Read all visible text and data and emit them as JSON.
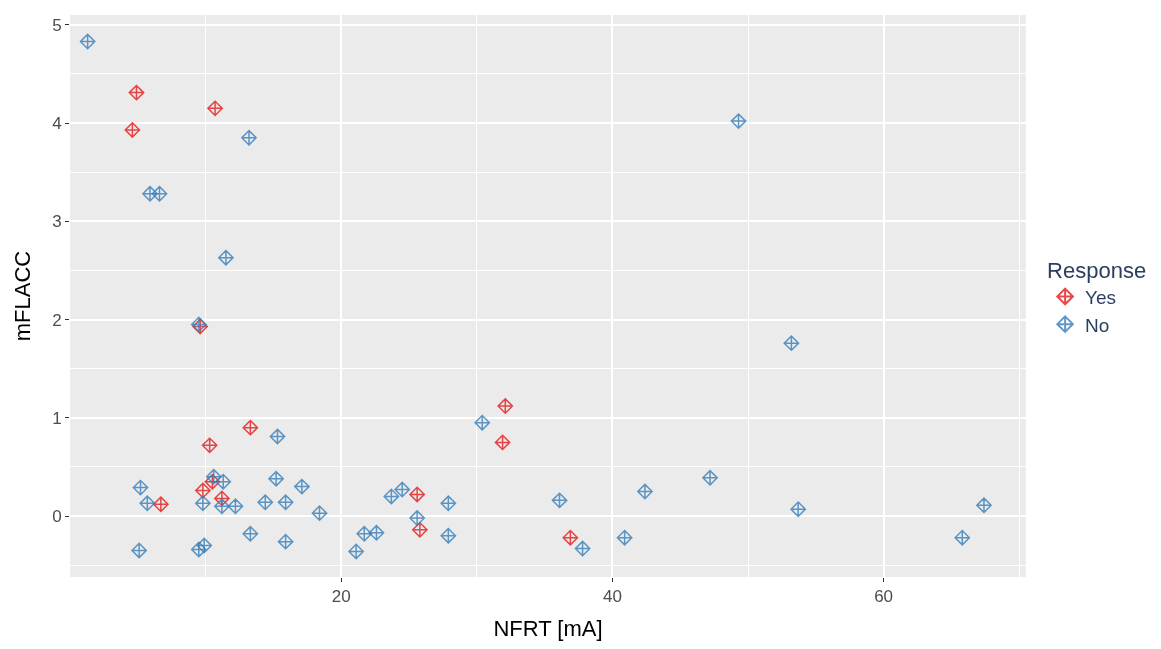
{
  "chart_data": {
    "type": "scatter",
    "xlabel": "NFRT [mA]",
    "ylabel": "mFLACC",
    "legend_title": "Response",
    "legend": "right",
    "grid": true,
    "marker": "diamond",
    "xlim": [
      0,
      70.5
    ],
    "xticks": [
      20,
      40,
      60
    ],
    "ylim": [
      -0.62,
      5.1
    ],
    "yticks": [
      0,
      1,
      2,
      3,
      4,
      5
    ],
    "series": [
      {
        "name": "Yes",
        "color": "#e41a1c",
        "x": [
          4.9,
          4.6,
          10.7,
          9.6,
          13.3,
          10.3,
          32.1,
          31.9,
          6.7,
          9.8,
          10.5,
          11.2,
          25.6,
          25.8,
          36.9
        ],
        "values": [
          4.31,
          3.93,
          4.15,
          1.93,
          0.9,
          0.72,
          1.12,
          0.75,
          0.12,
          0.26,
          0.35,
          0.18,
          0.22,
          -0.14,
          -0.22
        ]
      },
      {
        "name": "No",
        "color": "#377eb8",
        "x": [
          1.3,
          13.2,
          5.9,
          6.6,
          11.5,
          9.5,
          49.3,
          53.2,
          30.4,
          15.3,
          5.2,
          5.7,
          9.8,
          10.6,
          11.3,
          11.2,
          12.2,
          14.4,
          15.2,
          15.9,
          17.1,
          18.4,
          5.1,
          9.5,
          9.9,
          13.3,
          15.9,
          21.1,
          21.7,
          22.6,
          23.7,
          24.5,
          25.6,
          27.9,
          27.9,
          36.1,
          37.8,
          40.9,
          42.4,
          47.2,
          53.7,
          65.8,
          67.4
        ],
        "values": [
          4.83,
          3.85,
          3.28,
          3.28,
          2.63,
          1.95,
          4.02,
          1.76,
          0.95,
          0.81,
          0.29,
          0.13,
          0.13,
          0.4,
          0.35,
          0.1,
          0.1,
          0.14,
          0.38,
          0.14,
          0.3,
          0.03,
          -0.35,
          -0.34,
          -0.3,
          -0.18,
          -0.26,
          -0.36,
          -0.18,
          -0.17,
          0.2,
          0.27,
          -0.02,
          0.13,
          -0.2,
          0.16,
          -0.33,
          -0.22,
          0.25,
          0.39,
          0.07,
          -0.22,
          0.11
        ]
      }
    ]
  }
}
